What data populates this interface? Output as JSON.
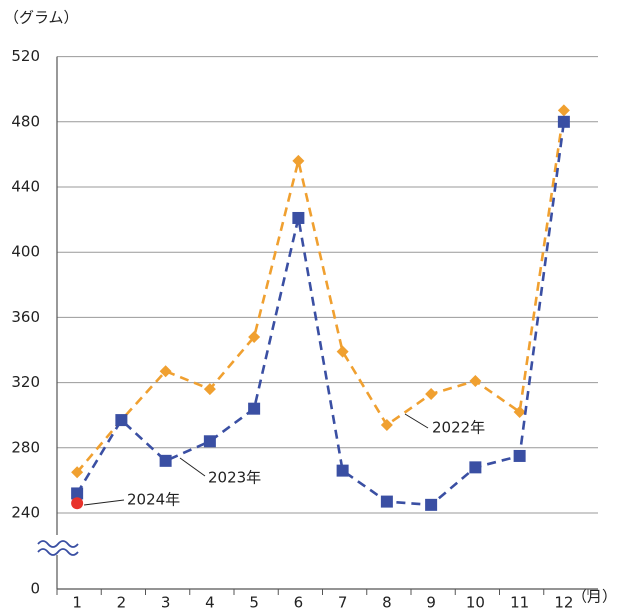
{
  "chart_data": {
    "type": "line",
    "y_axis_label": "（グラム）",
    "x_axis_label": "（月）",
    "categories": [
      "1",
      "2",
      "3",
      "4",
      "5",
      "6",
      "7",
      "8",
      "9",
      "10",
      "11",
      "12"
    ],
    "series": [
      {
        "name": "2022年",
        "color": "#f0a030",
        "marker": "diamond",
        "dashed": true,
        "values": [
          265,
          297,
          327,
          316,
          348,
          456,
          339,
          294,
          313,
          321,
          302,
          487
        ]
      },
      {
        "name": "2023年",
        "color": "#3a4fa3",
        "marker": "square",
        "dashed": true,
        "values": [
          252,
          297,
          272,
          284,
          304,
          421,
          266,
          247,
          245,
          268,
          275,
          480
        ]
      },
      {
        "name": "2024年",
        "color": "#e8322b",
        "marker": "circle",
        "dashed": false,
        "values": [
          246,
          null,
          null,
          null,
          null,
          null,
          null,
          null,
          null,
          null,
          null,
          null
        ]
      }
    ],
    "ylim": [
      240,
      520
    ],
    "yticks": [
      0,
      240,
      280,
      320,
      360,
      400,
      440,
      480,
      520
    ],
    "axis_break": true,
    "grid": true
  }
}
